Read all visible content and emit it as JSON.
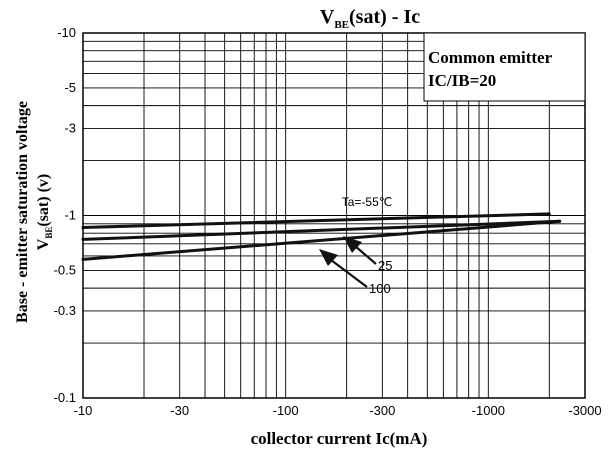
{
  "chart_data": {
    "type": "line",
    "title": {
      "main": "V",
      "sub": "BE",
      "rest": "(sat) - Ic"
    },
    "xlabel": "collector current Ic(mA)",
    "ylabel": {
      "line1": "Base - emitter saturation voltage",
      "line2_main": "V",
      "line2_sub": "BE",
      "line2_rest": "(sat) (v)"
    },
    "x_scale": "log",
    "y_scale": "log",
    "xlim": [
      -10,
      -3000
    ],
    "ylim": [
      -0.1,
      -10
    ],
    "x_ticks": [
      {
        "value": -10,
        "label": "-10"
      },
      {
        "value": -30,
        "label": "-30"
      },
      {
        "value": -100,
        "label": "-100"
      },
      {
        "value": -300,
        "label": "-300"
      },
      {
        "value": -1000,
        "label": "-1000"
      },
      {
        "value": -3000,
        "label": "-3000"
      }
    ],
    "y_ticks": [
      {
        "value": -0.1,
        "label": "-0.1"
      },
      {
        "value": -0.3,
        "label": "-0.3"
      },
      {
        "value": -0.5,
        "label": "-0.5"
      },
      {
        "value": -1,
        "label": "-1"
      },
      {
        "value": -3,
        "label": "-3"
      },
      {
        "value": -5,
        "label": "-5"
      },
      {
        "value": -10,
        "label": "-10"
      }
    ],
    "grid": true,
    "conditions": {
      "line1": "Common emitter",
      "line2": "IC/IB=20"
    },
    "series": [
      {
        "name": "Ta=-55℃",
        "x": [
          -10,
          -2000
        ],
        "y": [
          -0.86,
          -1.02
        ]
      },
      {
        "name": "25",
        "x": [
          -10,
          -2250
        ],
        "y": [
          -0.74,
          -0.93
        ]
      },
      {
        "name": "100",
        "x": [
          -10,
          -2250
        ],
        "y": [
          -0.575,
          -0.93
        ]
      }
    ],
    "annotations": [
      {
        "text": "Ta=-55℃",
        "series": "Ta=-55℃"
      },
      {
        "text": "25",
        "series": "25"
      },
      {
        "text": "100",
        "series": "100"
      }
    ]
  }
}
